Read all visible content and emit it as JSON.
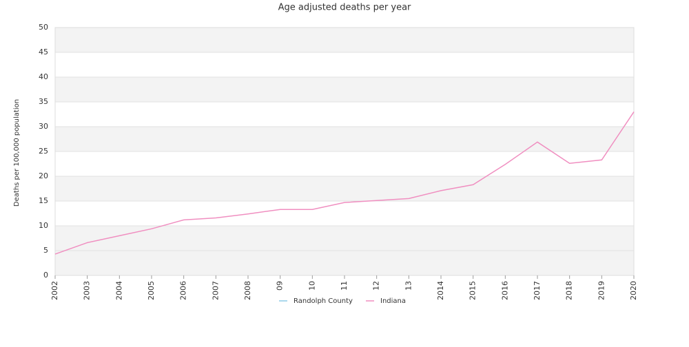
{
  "chart_data": {
    "type": "line",
    "title": "Age adjusted deaths per year",
    "y_label": "Deaths per 100,000 population",
    "categories": [
      "2002",
      "2003",
      "2004",
      "2005",
      "2006",
      "2007",
      "2008",
      "09",
      "10",
      "11",
      "12",
      "13",
      "2014",
      "2015",
      "2016",
      "2017",
      "2018",
      "2019",
      "2020"
    ],
    "series": [
      {
        "name": "Randolph County",
        "color": "#8ecbe6",
        "values": [
          null,
          null,
          null,
          null,
          null,
          null,
          null,
          null,
          null,
          null,
          null,
          null,
          null,
          null,
          null,
          null,
          null,
          null,
          null
        ]
      },
      {
        "name": "Indiana",
        "color": "#f08ec0",
        "values": [
          4.3,
          6.6,
          8.0,
          9.4,
          11.2,
          11.6,
          12.4,
          13.3,
          13.3,
          14.7,
          15.1,
          15.5,
          17.1,
          18.3,
          22.4,
          26.9,
          22.6,
          23.3,
          33.0
        ]
      }
    ],
    "ylim": [
      0,
      50
    ],
    "yticks": [
      0,
      5,
      10,
      15,
      20,
      25,
      30,
      35,
      40,
      45,
      50
    ],
    "grid": true,
    "legend": "bottom"
  }
}
